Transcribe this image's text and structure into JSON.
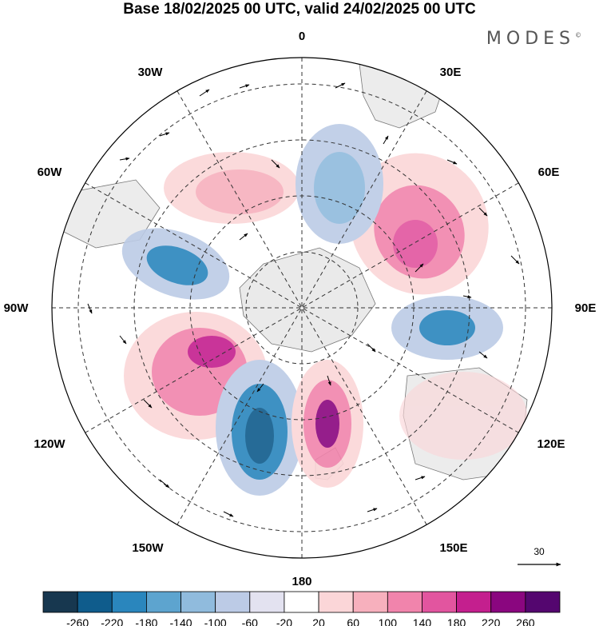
{
  "title": "Base 18/02/2025 00 UTC, valid 24/02/2025 00 UTC",
  "brand": "MODES",
  "brand_mark": "©",
  "longitude_labels": {
    "lon_0": "0",
    "lon_30E": "30E",
    "lon_60E": "60E",
    "lon_90E": "90E",
    "lon_120E": "120E",
    "lon_150E": "150E",
    "lon_180": "180",
    "lon_150W": "150W",
    "lon_120W": "120W",
    "lon_90W": "90W",
    "lon_60W": "60W",
    "lon_30W": "30W"
  },
  "reference_vector": "30",
  "colorbar": {
    "colors": [
      "#17374f",
      "#0f5c8c",
      "#2a86bd",
      "#5da4cf",
      "#90bbdd",
      "#bccbe6",
      "#e3e2f0",
      "#ffffff",
      "#fbd6d8",
      "#f7b0bd",
      "#f184ac",
      "#e2559f",
      "#c41f8e",
      "#8a067f",
      "#54066f"
    ],
    "tick_labels": [
      "-260",
      "-220",
      "-180",
      "-140",
      "-100",
      "-60",
      "-20",
      "20",
      "60",
      "100",
      "140",
      "180",
      "220",
      "260"
    ]
  },
  "icons": {
    "north-arrow": "vector-arrow-icon"
  }
}
